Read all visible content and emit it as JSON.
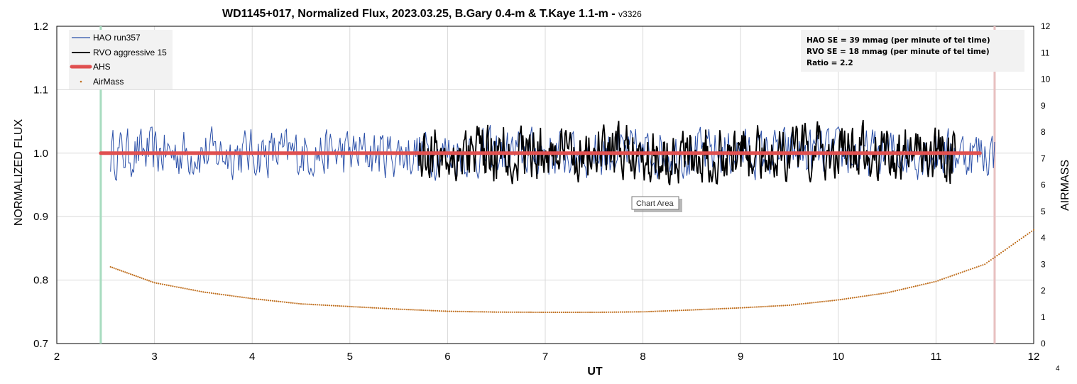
{
  "chart_data": {
    "type": "line",
    "title": "WD1145+017, Normalized Flux, 2023.03.25, B.Gary 0.4-m & T.Kaye 1.1-m - ",
    "title_suffix": "v3326",
    "xlabel": "UT",
    "ylabel": "NORMALIZED FLUX",
    "y2label": "AIRMASS",
    "xlim": [
      2,
      12
    ],
    "ylim": [
      0.7,
      1.2
    ],
    "y2lim": [
      0,
      12
    ],
    "x_ticks": [
      "2",
      "3",
      "4",
      "5",
      "6",
      "7",
      "8",
      "9",
      "10",
      "11",
      "12"
    ],
    "y_ticks": [
      "0.7",
      "0.8",
      "0.9",
      "1.0",
      "1.1",
      "1.2"
    ],
    "y2_ticks": [
      "0",
      "1",
      "2",
      "3",
      "4",
      "5",
      "6",
      "7",
      "8",
      "9",
      "10",
      "11",
      "12"
    ],
    "grid": true,
    "legend_position": "top-left",
    "series": [
      {
        "name": "HAO run357",
        "color": "#2a4fa8",
        "kind": "line",
        "x_start": 2.55,
        "x_end": 11.6,
        "mean": 1.0,
        "se": 0.02
      },
      {
        "name": "RVO aggressive 15",
        "color": "#000000",
        "kind": "line",
        "x_start": 5.7,
        "x_end": 11.2,
        "mean": 1.0,
        "se": 0.025
      },
      {
        "name": "AHS",
        "color": "#e05050",
        "kind": "thick-line",
        "x": [
          2.45,
          11.45
        ],
        "y": [
          1.0,
          1.0
        ]
      },
      {
        "name": "AirMass",
        "color": "#c07020",
        "kind": "dots",
        "axis": "right",
        "x": [
          2.55,
          3.0,
          3.5,
          4.0,
          4.5,
          5.0,
          5.5,
          6.0,
          6.5,
          7.0,
          7.5,
          8.0,
          8.5,
          9.0,
          9.5,
          10.0,
          10.5,
          11.0,
          11.5,
          12.0
        ],
        "y": [
          2.9,
          2.3,
          1.95,
          1.7,
          1.5,
          1.4,
          1.3,
          1.22,
          1.19,
          1.18,
          1.18,
          1.2,
          1.27,
          1.35,
          1.45,
          1.65,
          1.92,
          2.35,
          3.0,
          4.3
        ]
      }
    ],
    "vertical_markers": [
      {
        "x": 2.45,
        "color": "#a8dcc0"
      },
      {
        "x": 11.6,
        "color": "#e8c0c0"
      }
    ],
    "annotation": {
      "lines": [
        "HAO SE = 39 mmag (per minute of tel time)",
        "RVO SE = 18 mmag (per minute of tel time)",
        "Ratio = 2.2"
      ]
    },
    "tooltip": "Chart Area",
    "corner_label": "4"
  }
}
